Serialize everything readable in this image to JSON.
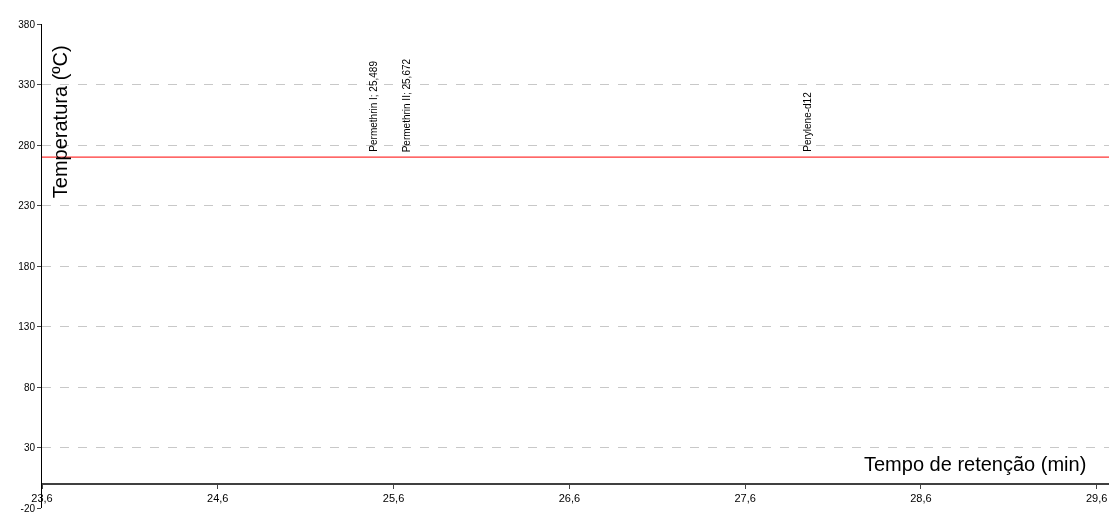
{
  "chart_data": {
    "type": "line",
    "xlabel": "Tempo de retenção (min)",
    "ylabel": "Temperatura (ºC)",
    "x": [
      23.6,
      29.67
    ],
    "series": [
      {
        "color": "#ff0000",
        "values": [
          270,
          270
        ]
      }
    ],
    "xlim": [
      23.6,
      29.67
    ],
    "ylim": [
      -20,
      380
    ],
    "xticks": [
      {
        "value": 23.6,
        "label": "23,6"
      },
      {
        "value": 24.6,
        "label": "24,6"
      },
      {
        "value": 25.6,
        "label": "25,6"
      },
      {
        "value": 26.6,
        "label": "26,6"
      },
      {
        "value": 27.6,
        "label": "27,6"
      },
      {
        "value": 28.6,
        "label": "28,6"
      },
      {
        "value": 29.6,
        "label": "29,6"
      }
    ],
    "yticks": [
      -20,
      30,
      80,
      130,
      180,
      230,
      280,
      330,
      380
    ],
    "grid": "y",
    "marker": "none",
    "line_style": "solid",
    "annotations": [
      {
        "text": "Permethrin I; 25,489",
        "x": 25.489,
        "y": 270
      },
      {
        "text": "Permethrin II; 25,672",
        "x": 25.672,
        "y": 270
      },
      {
        "text": "Perylene-d12",
        "x": 27.95,
        "y": 270
      }
    ]
  }
}
